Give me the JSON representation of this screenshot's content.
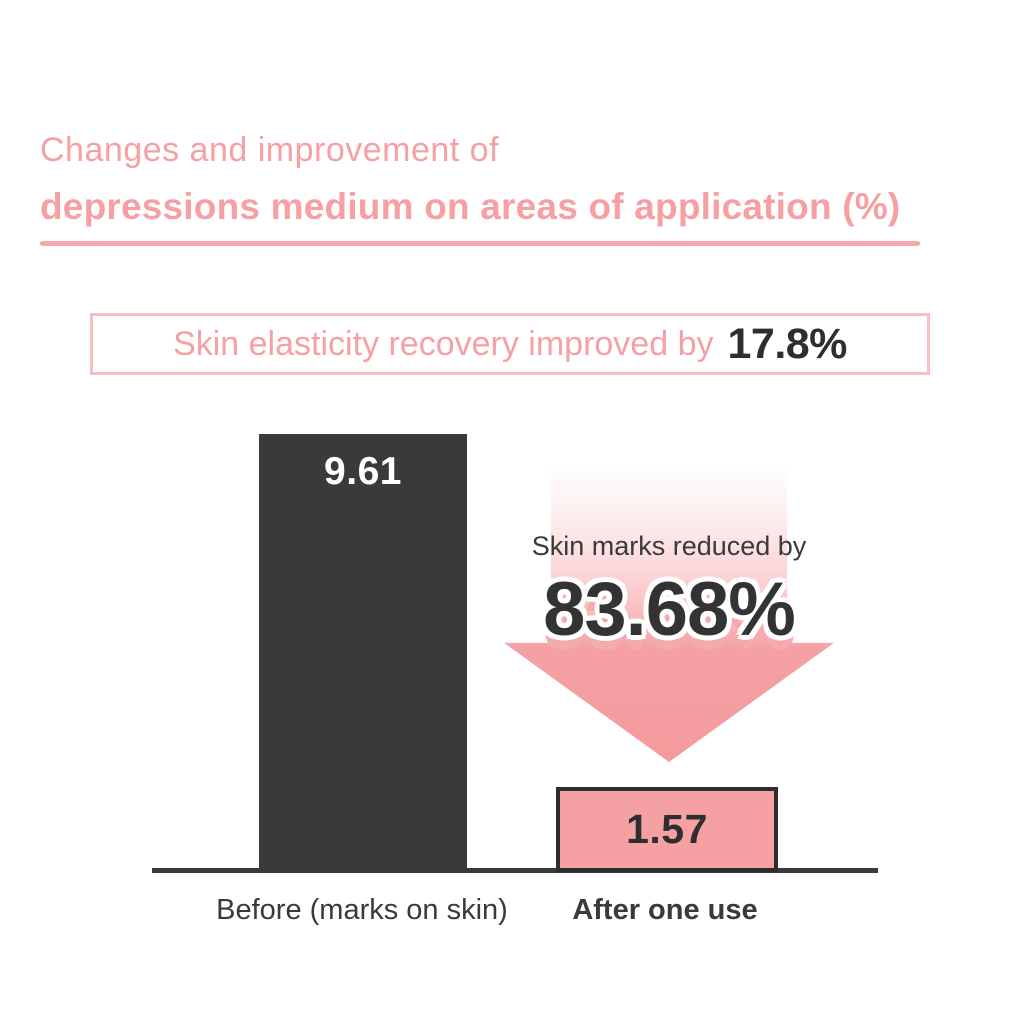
{
  "page": {
    "background": "#ffffff",
    "accent_pink": "#f5a1a4",
    "dark": "#3a3a3a"
  },
  "header": {
    "title_line1": "Changes and improvement of",
    "title_line2": "depressions medium on areas of application (%)"
  },
  "callout": {
    "text": "Skin elasticity recovery improved by",
    "value": "17.8%",
    "border_color": "#f8c0c2"
  },
  "chart_data": {
    "type": "bar",
    "title": "Changes and improvement of depressions medium on areas of application (%)",
    "categories": [
      "Before (marks on skin)",
      "After one use"
    ],
    "values": [
      9.61,
      1.57
    ],
    "data_labels": [
      "9.61",
      "1.57"
    ],
    "bar_colors": [
      "#3a3a3a",
      "#f5a1a4"
    ],
    "annotation": {
      "label": "Skin marks reduced by",
      "value": "83.68%"
    },
    "legend": "none",
    "gridlines": false,
    "baseline_color": "#3a3a3a"
  }
}
